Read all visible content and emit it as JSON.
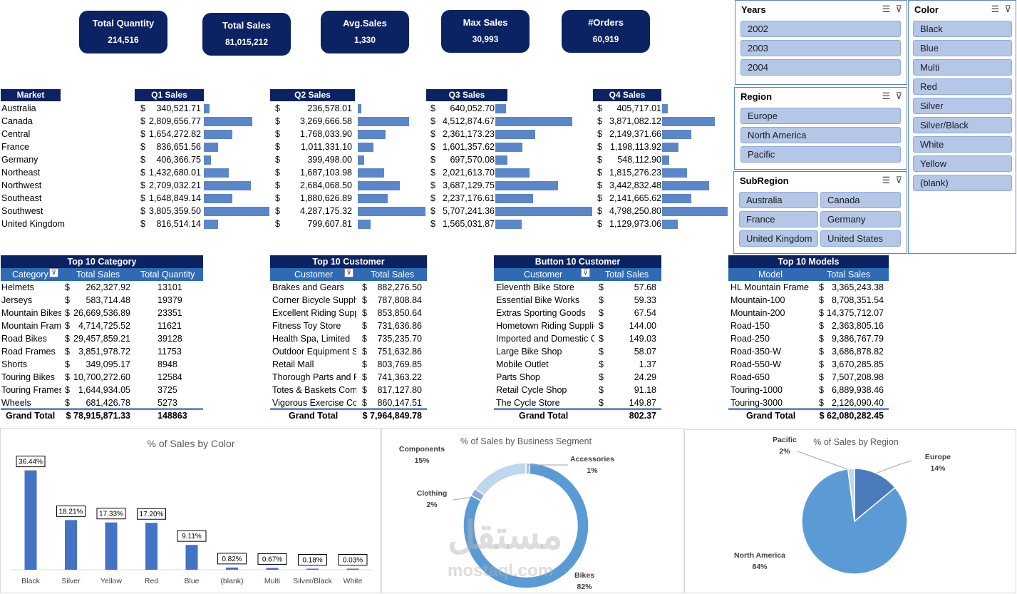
{
  "kpis": [
    {
      "label": "Total Quantity",
      "value": "214,516"
    },
    {
      "label": "Total Sales",
      "value": "81,015,212"
    },
    {
      "label": "Avg.Sales",
      "value": "1,330"
    },
    {
      "label": "Max Sales",
      "value": "30,993"
    },
    {
      "label": "#Orders",
      "value": "60,919"
    }
  ],
  "quarters": {
    "market_header": "Market",
    "markets": [
      "Australia",
      "Canada",
      "Central",
      "France",
      "Germany",
      "Northeast",
      "Northwest",
      "Southeast",
      "Southwest",
      "United Kingdom"
    ],
    "cols": [
      {
        "header": "Q1 Sales",
        "values": [
          "340,521.71",
          "2,809,656.77",
          "1,654,272.82",
          "836,651.56",
          "406,366.75",
          "1,432,680.01",
          "2,709,032.21",
          "1,648,849.14",
          "3,805,359.50",
          "816,514.14"
        ],
        "fractions": [
          0.089,
          0.738,
          0.435,
          0.22,
          0.107,
          0.376,
          0.712,
          0.433,
          1.0,
          0.215
        ]
      },
      {
        "header": "Q2 Sales",
        "values": [
          "236,578.01",
          "3,269,666.58",
          "1,768,033.90",
          "1,011,331.10",
          "399,498.00",
          "1,687,103.98",
          "2,684,068.50",
          "1,880,626.89",
          "4,287,175.32",
          "799,607.81"
        ],
        "fractions": [
          0.055,
          0.763,
          0.412,
          0.236,
          0.093,
          0.394,
          0.626,
          0.439,
          1.0,
          0.187
        ]
      },
      {
        "header": "Q3 Sales",
        "values": [
          "640,052.70",
          "4,512,874.67",
          "2,361,173.23",
          "1,601,357.62",
          "697,570.08",
          "2,021,613.70",
          "3,687,129.75",
          "2,237,176.61",
          "5,707,241.36",
          "1,565,031.87"
        ],
        "fractions": [
          0.112,
          0.791,
          0.414,
          0.281,
          0.122,
          0.354,
          0.646,
          0.392,
          1.0,
          0.274
        ]
      },
      {
        "header": "Q4 Sales",
        "values": [
          "405,717.01",
          "3,871,082.12",
          "2,149,371.66",
          "1,198,113.92",
          "548,112.90",
          "1,815,276.23",
          "3,442,832.48",
          "2,141,665.62",
          "4,798,250.80",
          "1,129,973.06"
        ],
        "fractions": [
          0.085,
          0.807,
          0.448,
          0.25,
          0.114,
          0.378,
          0.718,
          0.446,
          1.0,
          0.235
        ]
      }
    ]
  },
  "top_category": {
    "title": "Top 10 Category",
    "headers": [
      "Category",
      "Total Sales",
      "Total Quantity"
    ],
    "rows": [
      [
        "Helmets",
        "262,327.92",
        "13101"
      ],
      [
        "Jerseys",
        "583,714.48",
        "19379"
      ],
      [
        "Mountain Bikes",
        "26,669,536.89",
        "23351"
      ],
      [
        "Mountain Frames",
        "4,714,725.52",
        "11621"
      ],
      [
        "Road Bikes",
        "29,457,859.21",
        "39128"
      ],
      [
        "Road Frames",
        "3,851,978.72",
        "11753"
      ],
      [
        "Shorts",
        "349,095.17",
        "8948"
      ],
      [
        "Touring Bikes",
        "10,700,272.60",
        "12584"
      ],
      [
        "Touring Frames",
        "1,644,934.05",
        "3725"
      ],
      [
        "Wheels",
        "681,426.78",
        "5273"
      ]
    ],
    "total": [
      "Grand Total",
      "$ 78,915,871.33",
      "148863"
    ]
  },
  "top_customer": {
    "title": "Top 10 Customer",
    "headers": [
      "Customer",
      "Total Sales"
    ],
    "rows": [
      [
        "Brakes and Gears",
        "882,276.50"
      ],
      [
        "Corner Bicycle Supply",
        "787,808.84"
      ],
      [
        "Excellent Riding Supplies",
        "853,850.64"
      ],
      [
        "Fitness Toy Store",
        "731,636.86"
      ],
      [
        "Health Spa, Limited",
        "735,235.70"
      ],
      [
        "Outdoor Equipment Store",
        "751,632.86"
      ],
      [
        "Retail Mall",
        "803,769.85"
      ],
      [
        "Thorough Parts and Repair Services",
        "741,363.22"
      ],
      [
        "Totes & Baskets Company",
        "817,127.80"
      ],
      [
        "Vigorous Exercise Company",
        "860,147.51"
      ]
    ],
    "total": [
      "Grand Total",
      "$ 7,964,849.78"
    ]
  },
  "bottom_customer": {
    "title": "Button 10 Customer",
    "headers": [
      "Customer",
      "Total Sales"
    ],
    "rows": [
      [
        "Eleventh Bike Store",
        "57.68"
      ],
      [
        "Essential Bike Works",
        "59.33"
      ],
      [
        "Extras Sporting Goods",
        "67.54"
      ],
      [
        "Hometown Riding Supplies",
        "144.00"
      ],
      [
        "Imported and Domestic Cycles",
        "149.03"
      ],
      [
        "Large Bike Shop",
        "58.07"
      ],
      [
        "Mobile Outlet",
        "1.37"
      ],
      [
        "Parts Shop",
        "24.29"
      ],
      [
        "Retail Cycle Shop",
        "91.18"
      ],
      [
        "The Cycle Store",
        "149.87"
      ]
    ],
    "total": [
      "Grand Total",
      "802.37"
    ]
  },
  "top_models": {
    "title": "Top 10 Models",
    "headers": [
      "Model",
      "Total Sales"
    ],
    "rows": [
      [
        "HL Mountain Frame",
        "3,365,243.38"
      ],
      [
        "Mountain-100",
        "8,708,351.54"
      ],
      [
        "Mountain-200",
        "14,375,712.07"
      ],
      [
        "Road-150",
        "2,363,805.16"
      ],
      [
        "Road-250",
        "9,386,767.79"
      ],
      [
        "Road-350-W",
        "3,686,878.82"
      ],
      [
        "Road-550-W",
        "3,670,285.85"
      ],
      [
        "Road-650",
        "7,507,208.98"
      ],
      [
        "Touring-1000",
        "6,889,938.46"
      ],
      [
        "Touring-3000",
        "2,126,090.40"
      ]
    ],
    "total": [
      "Grand Total",
      "$ 62,080,282.45"
    ]
  },
  "slicers": {
    "years": {
      "title": "Years",
      "items": [
        "2002",
        "2003",
        "2004"
      ]
    },
    "region": {
      "title": "Region",
      "items": [
        "Europe",
        "North America",
        "Pacific"
      ]
    },
    "subregion": {
      "title": "SubRegion",
      "items": [
        "Australia",
        "Canada",
        "France",
        "Germany",
        "United Kingdom",
        "United States"
      ]
    },
    "color": {
      "title": "Color",
      "items": [
        "Black",
        "Blue",
        "Multi",
        "Red",
        "Silver",
        "Silver/Black",
        "White",
        "Yellow",
        "(blank)"
      ]
    }
  },
  "colors": {
    "navy": "#0b2263",
    "bar": "#5b86c9",
    "header_blue": "#2f6bb5",
    "slicer_btn": "#b4c7e7",
    "column": "#4472c4"
  },
  "chart_data": [
    {
      "type": "bar",
      "title": "% of Sales by Color",
      "categories": [
        "Black",
        "Silver",
        "Yellow",
        "Red",
        "Blue",
        "(blank)",
        "Multi",
        "Silver/Black",
        "White"
      ],
      "values": [
        36.44,
        18.21,
        17.33,
        17.2,
        9.11,
        0.82,
        0.67,
        0.18,
        0.03
      ],
      "data_labels": [
        "36.44%",
        "18.21%",
        "17.33%",
        "17.20%",
        "9.11%",
        "0.82%",
        "0.67%",
        "0.18%",
        "0.03%"
      ],
      "ylim": [
        0,
        40
      ]
    },
    {
      "type": "pie",
      "title": "% of Sales by Business Segment",
      "donut": true,
      "categories": [
        "Accessories",
        "Bikes",
        "Clothing",
        "Components"
      ],
      "values": [
        1,
        82,
        2,
        15
      ],
      "labels": [
        "Accessories\n1%",
        "Bikes\n82%",
        "Clothing\n2%",
        "Components\n15%"
      ],
      "slice_colors": [
        "#9dc3e6",
        "#5b9bd5",
        "#8faadc",
        "#bdd7ee"
      ]
    },
    {
      "type": "pie",
      "title": "% of Sales by Region",
      "categories": [
        "Europe",
        "North America",
        "Pacific"
      ],
      "values": [
        14,
        84,
        2
      ],
      "labels": [
        "Europe\n14%",
        "North America\n84%",
        "Pacific\n2%"
      ],
      "slice_colors": [
        "#4a7bbd",
        "#5b9bd5",
        "#bdd7ee"
      ]
    }
  ],
  "watermark": {
    "arabic": "مستقل",
    "latin": "mostaql.com"
  }
}
